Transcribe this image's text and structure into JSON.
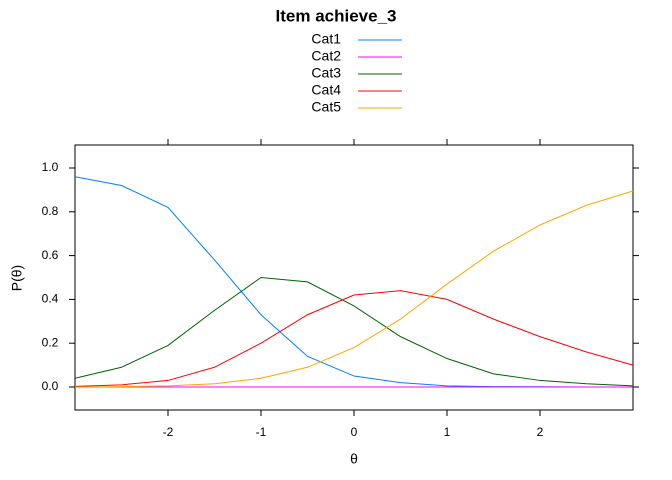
{
  "chart_data": {
    "type": "line",
    "title": "Item achieve_3",
    "x_label": "θ",
    "y_label": "P(θ)",
    "x": [
      -3,
      -2.5,
      -2,
      -1.5,
      -1,
      -0.5,
      0,
      0.5,
      1,
      1.5,
      2,
      2.5,
      3
    ],
    "series": [
      {
        "name": "Cat1",
        "color": "#0080ff",
        "values": [
          0.96,
          0.92,
          0.82,
          0.58,
          0.33,
          0.14,
          0.05,
          0.02,
          0.005,
          0.002,
          0.001,
          0,
          0
        ]
      },
      {
        "name": "Cat2",
        "color": "#ff00ff",
        "values": [
          0,
          0,
          0,
          0,
          0,
          0,
          0,
          0,
          0,
          0,
          0,
          0,
          0
        ]
      },
      {
        "name": "Cat3",
        "color": "#006400",
        "values": [
          0.04,
          0.09,
          0.19,
          0.35,
          0.5,
          0.48,
          0.37,
          0.23,
          0.13,
          0.06,
          0.03,
          0.015,
          0.005
        ]
      },
      {
        "name": "Cat4",
        "color": "#ff0000",
        "values": [
          0.003,
          0.01,
          0.03,
          0.09,
          0.2,
          0.33,
          0.42,
          0.44,
          0.4,
          0.31,
          0.23,
          0.16,
          0.1
        ]
      },
      {
        "name": "Cat5",
        "color": "#ffa500",
        "values": [
          0,
          0.002,
          0.005,
          0.015,
          0.04,
          0.09,
          0.18,
          0.31,
          0.47,
          0.62,
          0.74,
          0.83,
          0.895
        ]
      }
    ],
    "xlim": [
      -3,
      3
    ],
    "xticks": [
      -2,
      -1,
      0,
      1,
      2
    ],
    "ylim": [
      -0.105,
      1.105
    ],
    "yticks": [
      {
        "value": 0,
        "label": "0.0"
      },
      0.2,
      0.4,
      0.6,
      0.8,
      {
        "value": 1,
        "label": "1.0"
      }
    ],
    "grid": false
  }
}
